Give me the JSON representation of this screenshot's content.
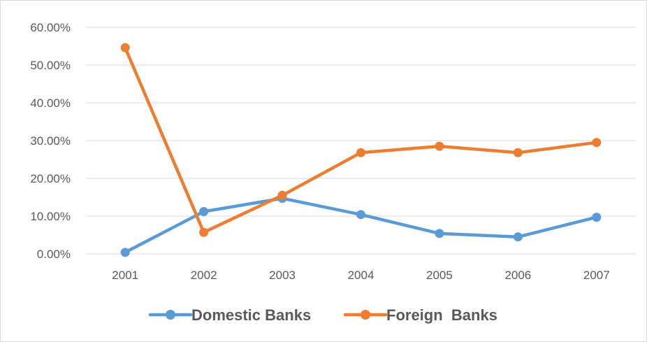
{
  "chart_data": {
    "type": "line",
    "title": "",
    "xlabel": "",
    "ylabel": "",
    "categories": [
      "2001",
      "2002",
      "2003",
      "2004",
      "2005",
      "2006",
      "2007"
    ],
    "ylim": [
      0,
      0.6
    ],
    "yticks": [
      0,
      0.1,
      0.2,
      0.3,
      0.4,
      0.5,
      0.6
    ],
    "ytick_labels": [
      "0.00%",
      "10.00%",
      "20.00%",
      "30.00%",
      "40.00%",
      "50.00%",
      "60.00%"
    ],
    "grid": true,
    "legend_position": "bottom",
    "series": [
      {
        "name": "Domestic Banks",
        "color": "#5b9bd5",
        "values": [
          0.004,
          0.112,
          0.147,
          0.104,
          0.054,
          0.045,
          0.097
        ]
      },
      {
        "name": "Foreign  Banks",
        "color": "#ed7d31",
        "values": [
          0.546,
          0.057,
          0.155,
          0.268,
          0.285,
          0.268,
          0.295
        ]
      }
    ]
  }
}
